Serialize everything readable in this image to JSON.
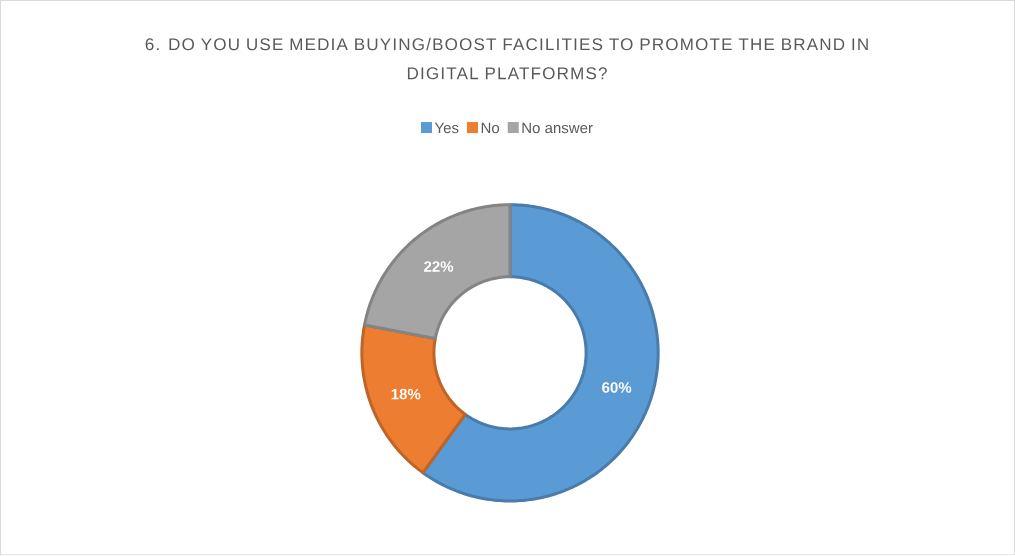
{
  "chart_data": {
    "type": "donut",
    "title": "6. DO YOU USE MEDIA BUYING/BOOST FACILITIES TO PROMOTE THE BRAND IN DIGITAL PLATFORMS?",
    "categories": [
      "Yes",
      "No",
      "No answer"
    ],
    "values": [
      60,
      18,
      22
    ],
    "value_labels": [
      "60%",
      "18%",
      "22%"
    ],
    "colors": [
      "#5b9bd5",
      "#ed7d31",
      "#a5a5a5"
    ],
    "legend": "top"
  }
}
